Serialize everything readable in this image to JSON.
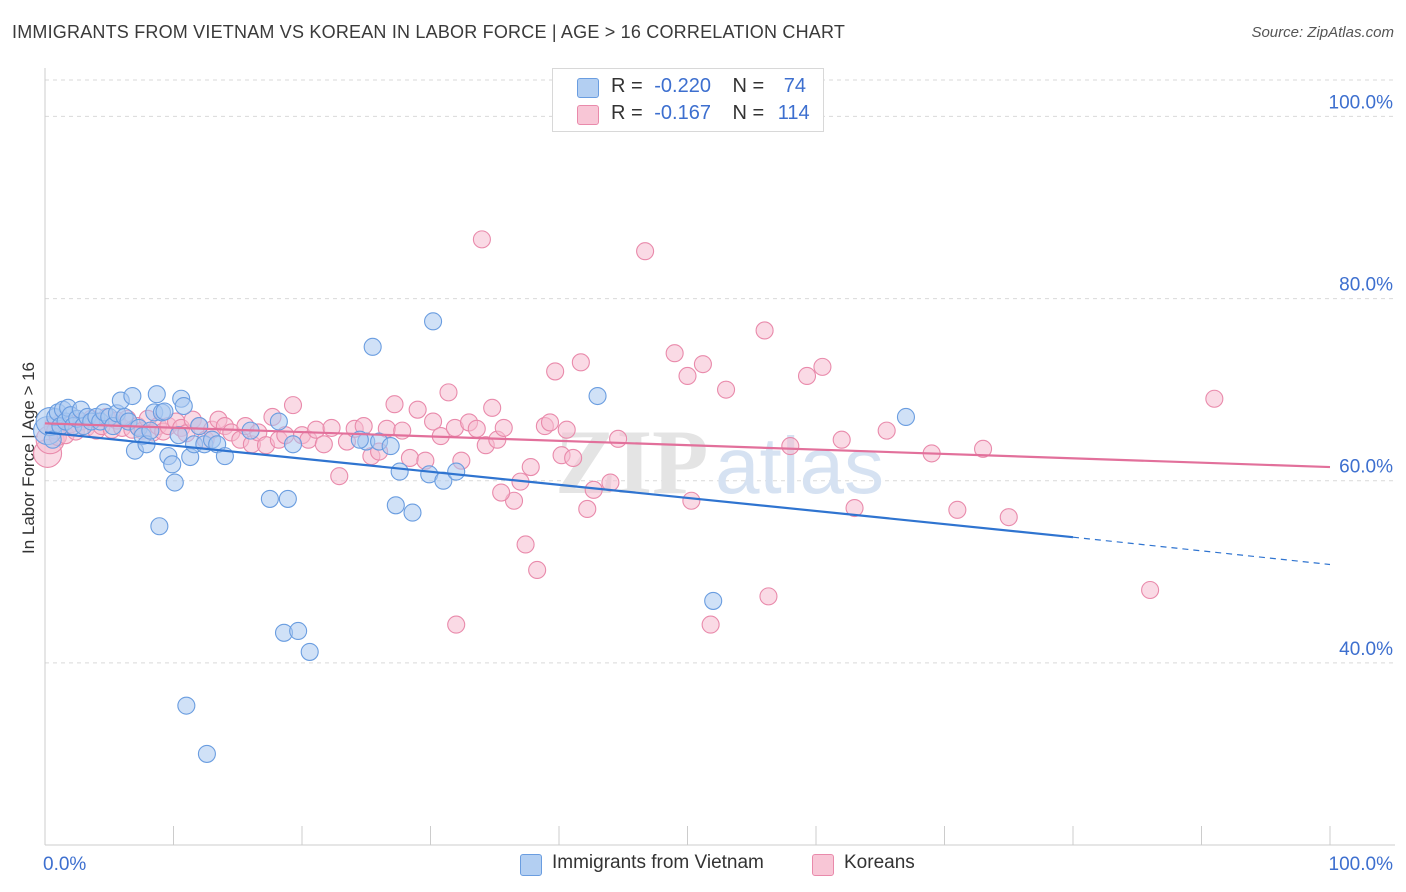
{
  "title": "IMMIGRANTS FROM VIETNAM VS KOREAN IN LABOR FORCE | AGE > 16 CORRELATION CHART",
  "source": "Source: ZipAtlas.com",
  "watermark": {
    "zip": "ZIP",
    "atlas": "atlas"
  },
  "legend_top": {
    "rows": [
      {
        "r_label": "R =",
        "r_value": "-0.220",
        "n_label": "N =",
        "n_value": "74"
      },
      {
        "r_label": "R =",
        "r_value": "-0.167",
        "n_label": "N =",
        "n_value": "114"
      }
    ]
  },
  "legend_bottom": {
    "series1": "Immigrants from Vietnam",
    "series2": "Koreans"
  },
  "colors": {
    "blue_fill": "#a9c8f0",
    "blue_stroke": "#6a9de0",
    "blue_line": "#2f74d0",
    "pink_fill": "#f5bccf",
    "pink_stroke": "#e98aab",
    "pink_line": "#e2709b",
    "tick_label": "#3d6fcf",
    "grid": "#d9d9d9"
  },
  "chart_data": {
    "type": "scatter",
    "title": "IMMIGRANTS FROM VIETNAM VS KOREAN IN LABOR FORCE | AGE > 16 CORRELATION CHART",
    "xlabel": "",
    "ylabel": "In Labor Force | Age > 16",
    "xlim": [
      0,
      100
    ],
    "ylim": [
      20,
      104
    ],
    "x_tick_labels": [
      "0.0%",
      "100.0%"
    ],
    "y_ticks": [
      40,
      60,
      80,
      100
    ],
    "y_tick_labels": [
      "40.0%",
      "60.0%",
      "80.0%",
      "100.0%"
    ],
    "series": [
      {
        "name": "Immigrants from Vietnam",
        "r": -0.22,
        "n": 74,
        "trend": {
          "x0": 0,
          "y0": 65.3,
          "x1": 80,
          "y1": 53.8,
          "dash_to_x": 100,
          "dash_to_y": 50.8
        },
        "points": [
          [
            0.2,
            65.5
          ],
          [
            0.4,
            66.5
          ],
          [
            0.6,
            64.5
          ],
          [
            0.8,
            67.0
          ],
          [
            1.0,
            67.5
          ],
          [
            1.2,
            66.0
          ],
          [
            1.4,
            67.8
          ],
          [
            1.6,
            66.5
          ],
          [
            1.8,
            68.0
          ],
          [
            2.0,
            67.2
          ],
          [
            2.2,
            66.0
          ],
          [
            2.5,
            66.8
          ],
          [
            2.8,
            67.8
          ],
          [
            3.0,
            66.0
          ],
          [
            3.3,
            67.0
          ],
          [
            3.6,
            66.5
          ],
          [
            4.0,
            67.0
          ],
          [
            4.3,
            66.5
          ],
          [
            4.6,
            67.5
          ],
          [
            5.0,
            67.0
          ],
          [
            5.3,
            66.0
          ],
          [
            5.6,
            67.4
          ],
          [
            5.9,
            68.8
          ],
          [
            6.2,
            67.0
          ],
          [
            6.5,
            66.5
          ],
          [
            6.8,
            69.3
          ],
          [
            7.0,
            63.3
          ],
          [
            7.3,
            65.8
          ],
          [
            7.6,
            64.9
          ],
          [
            7.9,
            64.0
          ],
          [
            8.2,
            65.5
          ],
          [
            8.5,
            67.5
          ],
          [
            8.7,
            69.5
          ],
          [
            8.9,
            55.0
          ],
          [
            9.1,
            67.5
          ],
          [
            9.3,
            67.6
          ],
          [
            9.6,
            62.7
          ],
          [
            9.9,
            61.8
          ],
          [
            10.1,
            59.8
          ],
          [
            10.4,
            65.0
          ],
          [
            10.6,
            69.0
          ],
          [
            10.8,
            68.2
          ],
          [
            11.0,
            35.3
          ],
          [
            11.3,
            62.6
          ],
          [
            11.6,
            64.0
          ],
          [
            12.0,
            66.0
          ],
          [
            12.4,
            64.0
          ],
          [
            12.6,
            30.0
          ],
          [
            13.0,
            64.5
          ],
          [
            13.4,
            64.0
          ],
          [
            14.0,
            62.7
          ],
          [
            16.0,
            65.5
          ],
          [
            17.5,
            58.0
          ],
          [
            18.2,
            66.5
          ],
          [
            18.6,
            43.3
          ],
          [
            18.9,
            58.0
          ],
          [
            19.3,
            64.0
          ],
          [
            19.7,
            43.5
          ],
          [
            20.6,
            41.2
          ],
          [
            25.0,
            64.3
          ],
          [
            25.5,
            74.7
          ],
          [
            26.0,
            64.3
          ],
          [
            24.5,
            64.5
          ],
          [
            26.9,
            63.8
          ],
          [
            27.3,
            57.3
          ],
          [
            27.6,
            61.0
          ],
          [
            28.6,
            56.5
          ],
          [
            29.9,
            60.7
          ],
          [
            30.2,
            77.5
          ],
          [
            31.0,
            60.0
          ],
          [
            32.0,
            61.0
          ],
          [
            43.0,
            69.3
          ],
          [
            52.0,
            46.8
          ],
          [
            67.0,
            67.0
          ]
        ]
      },
      {
        "name": "Koreans",
        "r": -0.167,
        "n": 114,
        "trend": {
          "x0": 0,
          "y0": 66.3,
          "x1": 100,
          "y1": 61.5
        },
        "points": [
          [
            0.2,
            63.0
          ],
          [
            0.4,
            64.5
          ],
          [
            0.6,
            66.0
          ],
          [
            0.8,
            65.5
          ],
          [
            1.0,
            64.8
          ],
          [
            1.3,
            66.5
          ],
          [
            1.6,
            65.0
          ],
          [
            2.0,
            66.2
          ],
          [
            2.4,
            65.4
          ],
          [
            2.8,
            66.5
          ],
          [
            3.2,
            65.8
          ],
          [
            3.6,
            66.8
          ],
          [
            4.0,
            65.5
          ],
          [
            4.4,
            66.0
          ],
          [
            4.8,
            67.0
          ],
          [
            5.2,
            65.6
          ],
          [
            5.6,
            66.6
          ],
          [
            6.0,
            65.8
          ],
          [
            6.4,
            66.8
          ],
          [
            6.8,
            65.6
          ],
          [
            7.2,
            66.0
          ],
          [
            7.6,
            65.5
          ],
          [
            8.0,
            66.8
          ],
          [
            8.4,
            65.3
          ],
          [
            8.8,
            66.0
          ],
          [
            9.2,
            65.4
          ],
          [
            9.6,
            66.0
          ],
          [
            10.2,
            66.5
          ],
          [
            10.6,
            65.8
          ],
          [
            11.0,
            65.2
          ],
          [
            11.5,
            66.7
          ],
          [
            12.0,
            66.0
          ],
          [
            12.5,
            64.5
          ],
          [
            13.0,
            65.6
          ],
          [
            13.5,
            66.7
          ],
          [
            14.0,
            66.0
          ],
          [
            14.5,
            65.3
          ],
          [
            15.2,
            64.5
          ],
          [
            15.6,
            66.0
          ],
          [
            16.1,
            64.0
          ],
          [
            16.6,
            65.3
          ],
          [
            17.2,
            63.9
          ],
          [
            17.7,
            67.0
          ],
          [
            18.2,
            64.5
          ],
          [
            18.7,
            65.0
          ],
          [
            19.3,
            68.3
          ],
          [
            20.0,
            65.0
          ],
          [
            20.5,
            64.5
          ],
          [
            21.1,
            65.6
          ],
          [
            21.7,
            64.0
          ],
          [
            22.3,
            65.8
          ],
          [
            22.9,
            60.5
          ],
          [
            23.5,
            64.3
          ],
          [
            24.1,
            65.7
          ],
          [
            24.8,
            66.0
          ],
          [
            25.4,
            62.7
          ],
          [
            26.0,
            63.2
          ],
          [
            26.6,
            65.7
          ],
          [
            27.2,
            68.4
          ],
          [
            27.8,
            65.5
          ],
          [
            28.4,
            62.5
          ],
          [
            29.0,
            67.8
          ],
          [
            29.6,
            62.2
          ],
          [
            30.2,
            66.5
          ],
          [
            30.8,
            64.9
          ],
          [
            31.4,
            69.7
          ],
          [
            31.9,
            65.8
          ],
          [
            32.4,
            62.2
          ],
          [
            33.0,
            66.4
          ],
          [
            33.6,
            65.7
          ],
          [
            34.0,
            86.5
          ],
          [
            34.3,
            63.9
          ],
          [
            34.8,
            68.0
          ],
          [
            35.2,
            64.5
          ],
          [
            35.7,
            65.8
          ],
          [
            36.5,
            57.8
          ],
          [
            37.0,
            59.9
          ],
          [
            37.4,
            53.0
          ],
          [
            37.8,
            61.5
          ],
          [
            38.3,
            50.2
          ],
          [
            38.9,
            66.0
          ],
          [
            39.3,
            66.4
          ],
          [
            39.7,
            72.0
          ],
          [
            40.2,
            62.8
          ],
          [
            40.6,
            65.6
          ],
          [
            41.1,
            62.5
          ],
          [
            41.7,
            73.0
          ],
          [
            42.2,
            56.9
          ],
          [
            42.7,
            59.0
          ],
          [
            44.0,
            59.8
          ],
          [
            44.6,
            64.6
          ],
          [
            46.7,
            85.2
          ],
          [
            49.0,
            74.0
          ],
          [
            50.0,
            71.5
          ],
          [
            51.2,
            72.8
          ],
          [
            53.0,
            70.0
          ],
          [
            56.0,
            76.5
          ],
          [
            59.3,
            71.5
          ],
          [
            60.5,
            72.5
          ],
          [
            62.0,
            64.5
          ],
          [
            63.0,
            57.0
          ],
          [
            65.5,
            65.5
          ],
          [
            69.0,
            63.0
          ],
          [
            71.0,
            56.8
          ],
          [
            73.0,
            63.5
          ],
          [
            75.0,
            56.0
          ],
          [
            86.0,
            48.0
          ],
          [
            91.0,
            69.0
          ],
          [
            32.0,
            44.2
          ],
          [
            50.3,
            57.8
          ],
          [
            51.8,
            44.2
          ],
          [
            56.3,
            47.3
          ],
          [
            58.0,
            63.8
          ],
          [
            35.5,
            58.7
          ]
        ]
      }
    ]
  }
}
